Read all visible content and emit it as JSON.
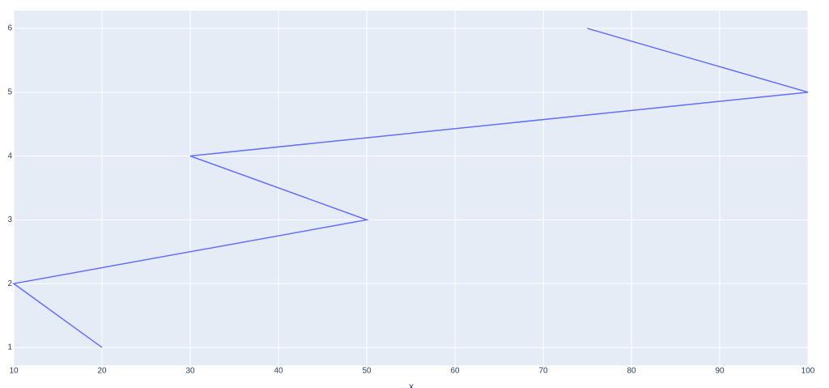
{
  "chart_data": {
    "type": "line",
    "x_label": "x",
    "x": [
      20,
      10,
      50,
      30,
      100,
      75
    ],
    "values": [
      1,
      2,
      3,
      4,
      5,
      6
    ],
    "color": "#636efa",
    "xlim": [
      10,
      100
    ],
    "xticks": [
      10,
      20,
      30,
      40,
      50,
      60,
      70,
      80,
      90,
      100
    ],
    "ylim": [
      0.72,
      6.28
    ],
    "yticks": [
      1,
      2,
      3,
      4,
      5,
      6
    ],
    "grid": true
  }
}
